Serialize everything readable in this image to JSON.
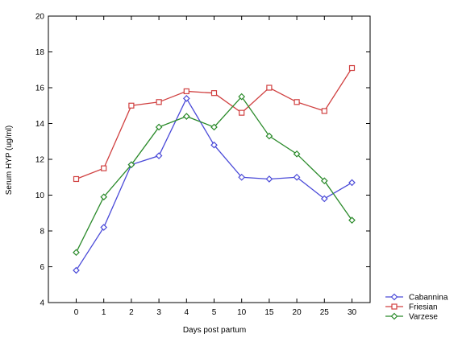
{
  "chart_data": {
    "type": "line",
    "xlabel": "Days post partum",
    "ylabel": "Serum HYP (ug/ml)",
    "categories": [
      "0",
      "1",
      "2",
      "3",
      "4",
      "5",
      "10",
      "15",
      "20",
      "25",
      "30"
    ],
    "ylim": [
      4,
      20
    ],
    "yticks": [
      "4",
      "6",
      "8",
      "10",
      "12",
      "14",
      "16",
      "18",
      "20"
    ],
    "grid": false,
    "legend_position": "bottom-right",
    "series": [
      {
        "name": "Cabannina",
        "color": "#4a4ad8",
        "marker": "diamond",
        "values": [
          5.8,
          8.2,
          11.7,
          12.2,
          15.4,
          12.8,
          11.0,
          10.9,
          11.0,
          9.8,
          10.7
        ]
      },
      {
        "name": "Friesian",
        "color": "#d04040",
        "marker": "square",
        "values": [
          10.9,
          11.5,
          15.0,
          15.2,
          15.8,
          15.7,
          14.6,
          16.0,
          15.2,
          14.7,
          17.1
        ]
      },
      {
        "name": "Varzese",
        "color": "#2a8a2a",
        "marker": "diamond",
        "values": [
          6.8,
          9.9,
          11.7,
          13.8,
          14.4,
          13.8,
          15.5,
          13.3,
          12.3,
          10.8,
          8.6
        ]
      }
    ]
  }
}
